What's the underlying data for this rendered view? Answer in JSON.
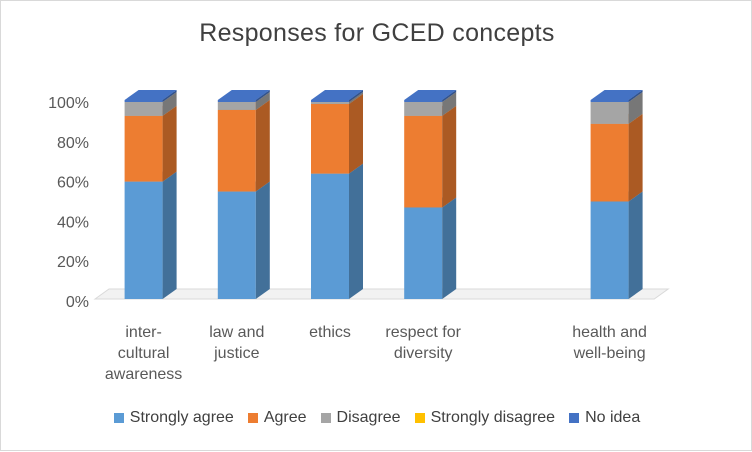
{
  "chart_data": {
    "type": "bar",
    "stacked": true,
    "percent_stacked": true,
    "three_d": true,
    "title": "Responses for GCED concepts",
    "categories": [
      [
        "inter-",
        "cultural",
        "awareness"
      ],
      [
        "law and",
        "justice"
      ],
      [
        "ethics"
      ],
      [
        "respect for",
        "diversity"
      ],
      [],
      [
        "health and",
        "well-being"
      ]
    ],
    "series": [
      {
        "name": "Strongly agree",
        "color": "#5b9bd5",
        "values": [
          59,
          54,
          63,
          46,
          null,
          49
        ]
      },
      {
        "name": "Agree",
        "color": "#ed7d31",
        "values": [
          33,
          41,
          35,
          46,
          null,
          39
        ]
      },
      {
        "name": "Disagree",
        "color": "#a5a5a5",
        "values": [
          7,
          4,
          1,
          7,
          null,
          11
        ]
      },
      {
        "name": "Strongly disagree",
        "color": "#ffc000",
        "values": [
          0,
          0,
          0,
          0,
          null,
          0
        ]
      },
      {
        "name": "No idea",
        "color": "#4472c4",
        "values": [
          1,
          1,
          1,
          1,
          null,
          1
        ]
      }
    ],
    "y_ticks": [
      "0%",
      "20%",
      "40%",
      "60%",
      "80%",
      "100%"
    ],
    "ylim": [
      0,
      100
    ],
    "legend_position": "bottom",
    "grid": false
  }
}
